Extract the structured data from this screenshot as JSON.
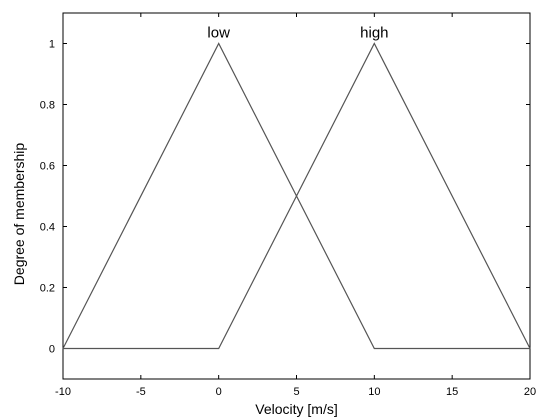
{
  "chart_data": {
    "type": "line",
    "title": "",
    "xlabel": "Velocity [m/s]",
    "ylabel": "Degree of membership",
    "xlim": [
      -10,
      20
    ],
    "ylim": [
      -0.1,
      1.1
    ],
    "xticks": [
      -10,
      -5,
      0,
      5,
      10,
      15,
      20
    ],
    "xtick_labels": [
      "-10",
      "-5",
      "0",
      "5",
      "10",
      "15",
      "20"
    ],
    "yticks": [
      0,
      0.2,
      0.4,
      0.6,
      0.8,
      1
    ],
    "ytick_labels": [
      "0",
      "0.2",
      "0.4",
      "0.6",
      "0.8",
      "1"
    ],
    "grid": false,
    "line_color": "#555555",
    "series": [
      {
        "name": "low",
        "x": [
          -10,
          0,
          10,
          20
        ],
        "y": [
          0,
          1,
          0,
          0
        ],
        "label_at": [
          0,
          1
        ]
      },
      {
        "name": "high",
        "x": [
          -10,
          0,
          10,
          20
        ],
        "y": [
          0,
          0,
          1,
          0
        ],
        "label_at": [
          10,
          1
        ]
      }
    ]
  }
}
